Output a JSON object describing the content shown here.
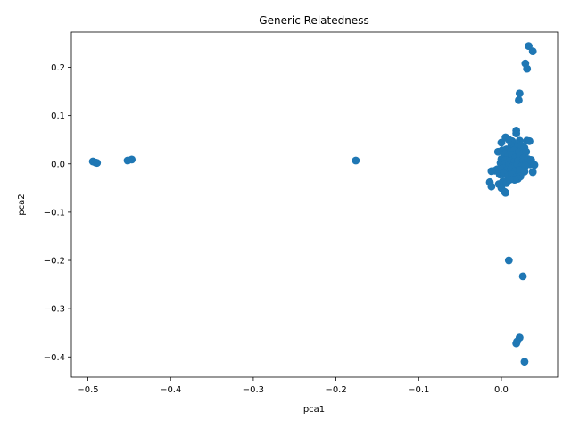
{
  "chart_data": {
    "type": "scatter",
    "title": "Generic Relatedness",
    "xlabel": "pca1",
    "ylabel": "pca2",
    "xlim": [
      -0.52,
      0.068
    ],
    "ylim": [
      -0.442,
      0.273
    ],
    "grid": false,
    "marker_color": "#1f77b4",
    "x_ticks": [
      -0.5,
      -0.4,
      -0.3,
      -0.2,
      -0.1,
      0.0
    ],
    "x_tick_labels": [
      "−0.5",
      "−0.4",
      "−0.3",
      "−0.2",
      "−0.1",
      "0.0"
    ],
    "y_ticks": [
      -0.4,
      -0.3,
      -0.2,
      -0.1,
      0.0,
      0.1,
      0.2
    ],
    "y_tick_labels": [
      "−0.4",
      "−0.3",
      "−0.2",
      "−0.1",
      "0.0",
      "0.1",
      "0.2"
    ],
    "series": [
      {
        "points": [
          [
            -0.494,
            0.005
          ],
          [
            -0.491,
            0.003
          ],
          [
            -0.489,
            0.002
          ],
          [
            -0.452,
            0.007
          ],
          [
            -0.447,
            0.009
          ],
          [
            -0.176,
            0.007
          ],
          [
            0.033,
            0.244
          ],
          [
            0.038,
            0.233
          ],
          [
            0.029,
            0.208
          ],
          [
            0.031,
            0.197
          ],
          [
            0.022,
            0.146
          ],
          [
            0.021,
            0.132
          ],
          [
            0.009,
            -0.2
          ],
          [
            0.026,
            -0.233
          ],
          [
            0.022,
            -0.36
          ],
          [
            0.019,
            -0.368
          ],
          [
            0.018,
            -0.372
          ],
          [
            0.028,
            -0.41
          ],
          [
            0.0,
            0.044
          ],
          [
            0.005,
            0.055
          ],
          [
            0.009,
            0.05
          ],
          [
            0.013,
            0.047
          ],
          [
            0.018,
            0.069
          ],
          [
            0.018,
            0.063
          ],
          [
            0.022,
            0.048
          ],
          [
            0.031,
            0.048
          ],
          [
            0.034,
            0.047
          ],
          [
            0.012,
            0.038
          ],
          [
            0.016,
            0.035
          ],
          [
            0.02,
            0.04
          ],
          [
            0.024,
            0.038
          ],
          [
            0.028,
            0.033
          ],
          [
            -0.004,
            0.025
          ],
          [
            0.001,
            0.028
          ],
          [
            0.006,
            0.03
          ],
          [
            0.011,
            0.026
          ],
          [
            0.015,
            0.028
          ],
          [
            0.021,
            0.025
          ],
          [
            0.026,
            0.022
          ],
          [
            0.03,
            0.025
          ],
          [
            0.004,
            0.02
          ],
          [
            0.008,
            0.016
          ],
          [
            0.013,
            0.018
          ],
          [
            0.017,
            0.013
          ],
          [
            0.022,
            0.017
          ],
          [
            0.027,
            0.012
          ],
          [
            0.032,
            0.01
          ],
          [
            0.036,
            0.008
          ],
          [
            0.0,
            0.01
          ],
          [
            0.005,
            0.008
          ],
          [
            0.01,
            0.006
          ],
          [
            0.015,
            0.004
          ],
          [
            0.02,
            0.006
          ],
          [
            0.025,
            0.003
          ],
          [
            0.03,
            0.002
          ],
          [
            0.035,
            -0.001
          ],
          [
            0.04,
            -0.002
          ],
          [
            -0.001,
            0.002
          ],
          [
            0.004,
            -0.001
          ],
          [
            0.009,
            -0.003
          ],
          [
            0.014,
            -0.005
          ],
          [
            0.019,
            -0.002
          ],
          [
            0.024,
            -0.006
          ],
          [
            0.029,
            -0.004
          ],
          [
            -0.005,
            -0.011
          ],
          [
            -0.008,
            -0.014
          ],
          [
            -0.012,
            -0.015
          ],
          [
            0.002,
            -0.009
          ],
          [
            0.007,
            -0.012
          ],
          [
            0.012,
            -0.01
          ],
          [
            0.017,
            -0.015
          ],
          [
            0.022,
            -0.013
          ],
          [
            0.028,
            -0.016
          ],
          [
            0.038,
            -0.017
          ],
          [
            -0.002,
            -0.022
          ],
          [
            0.003,
            -0.02
          ],
          [
            0.008,
            -0.025
          ],
          [
            0.013,
            -0.022
          ],
          [
            0.018,
            -0.028
          ],
          [
            0.023,
            -0.026
          ],
          [
            0.02,
            -0.031
          ],
          [
            0.016,
            -0.033
          ],
          [
            -0.014,
            -0.038
          ],
          [
            -0.012,
            -0.047
          ],
          [
            -0.003,
            -0.042
          ],
          [
            0.002,
            -0.036
          ],
          [
            0.006,
            -0.04
          ],
          [
            0.01,
            -0.033
          ],
          [
            0.0,
            -0.05
          ],
          [
            0.004,
            -0.058
          ],
          [
            0.005,
            -0.06
          ]
        ]
      }
    ]
  }
}
